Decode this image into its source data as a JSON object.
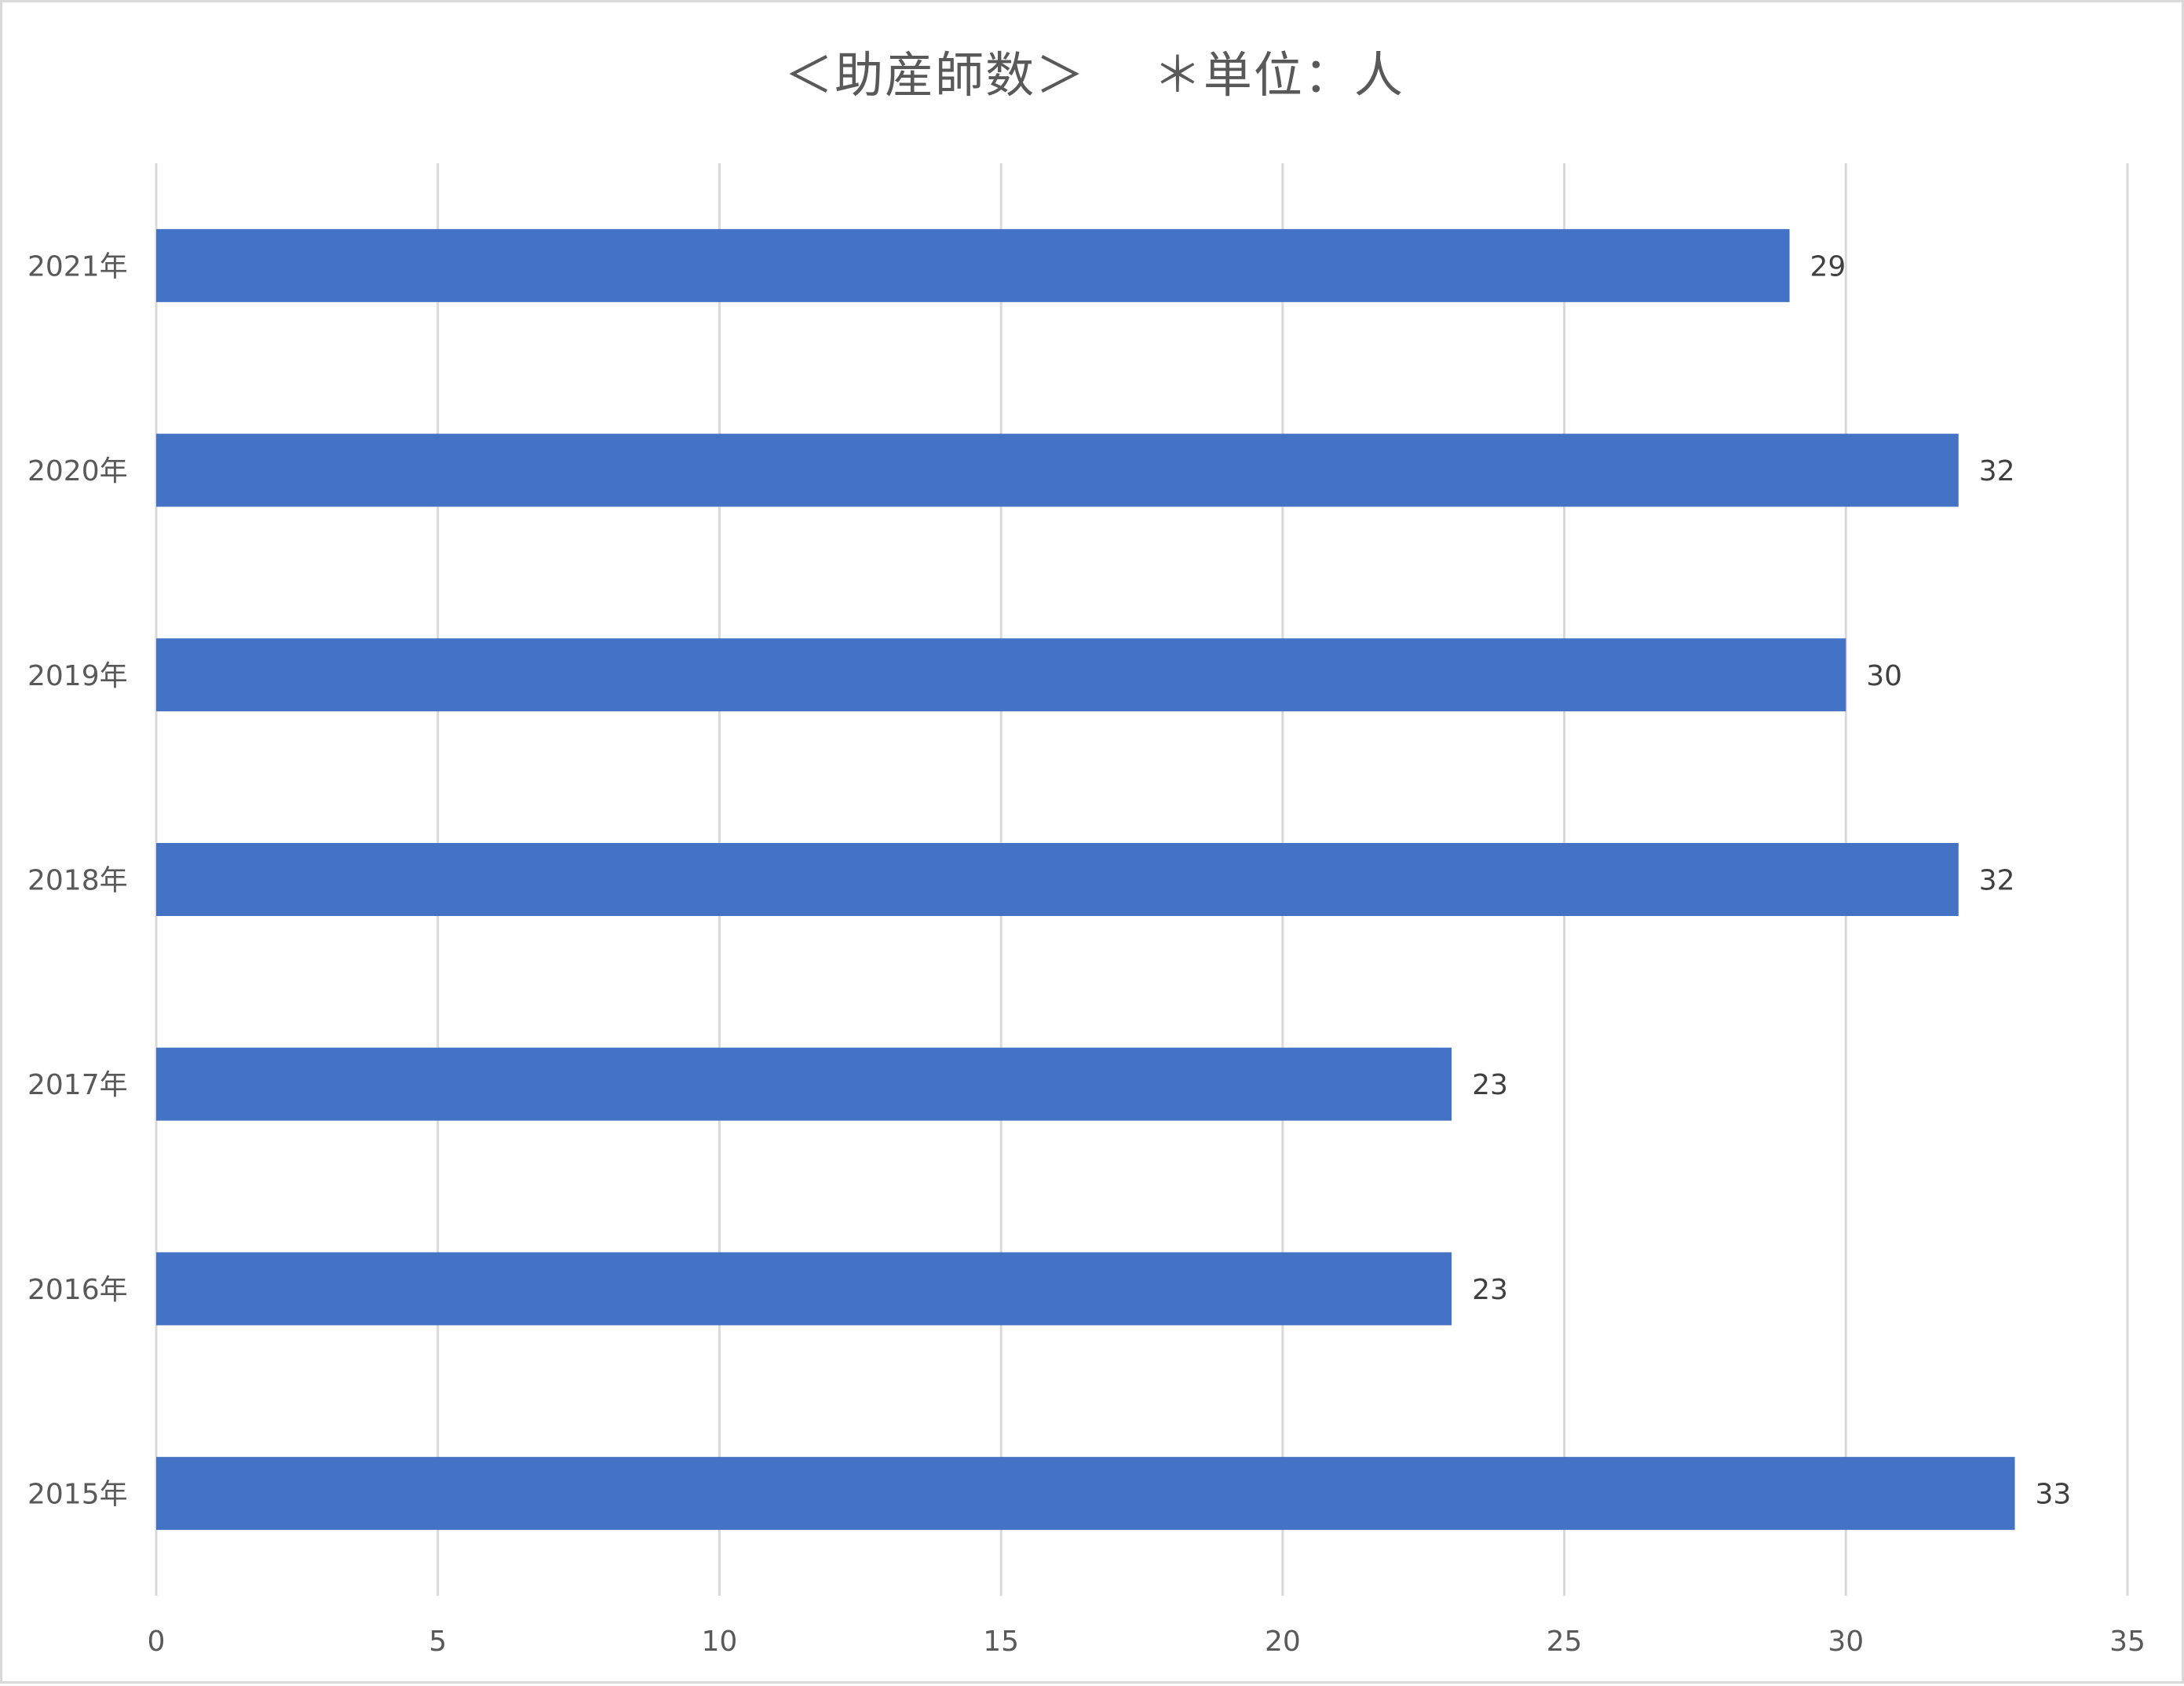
{
  "chart_data": {
    "type": "bar",
    "orientation": "horizontal",
    "title": "＜助産師数＞　 ＊単位：人",
    "categories": [
      "2021年",
      "2020年",
      "2019年",
      "2018年",
      "2017年",
      "2016年",
      "2015年"
    ],
    "values": [
      29,
      32,
      30,
      32,
      23,
      23,
      33
    ],
    "data_labels": [
      "29",
      "32",
      "30",
      "32",
      "23",
      "23",
      "33"
    ],
    "xlim": [
      0,
      35
    ],
    "x_ticks": [
      0,
      5,
      10,
      15,
      20,
      25,
      30,
      35
    ],
    "x_tick_labels": [
      "0",
      "5",
      "10",
      "15",
      "20",
      "25",
      "30",
      "35"
    ],
    "grid": true,
    "legend": "none",
    "bar_color": "#4472c4"
  }
}
